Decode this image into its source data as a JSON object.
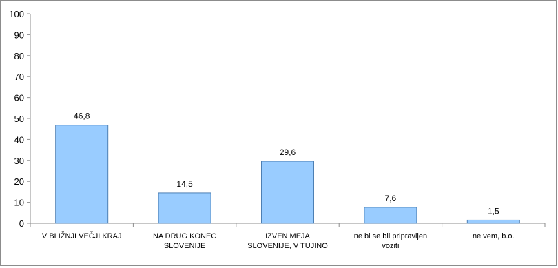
{
  "chart_data": {
    "type": "bar",
    "categories": [
      [
        "V BLIŽNJI VEČJI KRAJ"
      ],
      [
        "NA DRUG KONEC",
        "SLOVENIJE"
      ],
      [
        "IZVEN MEJA",
        "SLOVENIJE, V TUJINO"
      ],
      [
        "ne bi se bil pripravljen",
        "voziti"
      ],
      [
        "ne vem, b.o."
      ]
    ],
    "values": [
      46.8,
      14.5,
      29.6,
      7.6,
      1.5
    ],
    "data_labels": [
      "46,8",
      "14,5",
      "29,6",
      "7,6",
      "1,5"
    ],
    "ylim": [
      0,
      100
    ],
    "yticks": [
      0,
      10,
      20,
      30,
      40,
      50,
      60,
      70,
      80,
      90,
      100
    ],
    "title": "",
    "xlabel": "",
    "ylabel": "",
    "grid": false,
    "legend": "none",
    "colors": {
      "bar_fill": "#99ccff",
      "bar_stroke": "#4d7fb3",
      "axis": "#8c8c8c"
    }
  }
}
